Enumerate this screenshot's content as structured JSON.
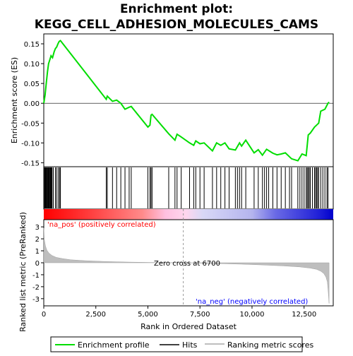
{
  "chart_data": {
    "type": "line",
    "title_line1": "Enrichment plot:",
    "title_line2": "KEGG_CELL_ADHESION_MOLECULES_CAMS",
    "xlabel": "Rank in Ordered Dataset",
    "ylabel_top": "Enrichment score (ES)",
    "ylabel_bottom": "Ranked list metric (PreRanked)",
    "xlim": [
      0,
      13900
    ],
    "x_ticks": [
      0,
      2500,
      5000,
      7500,
      10000,
      12500
    ],
    "x_tick_labels": [
      "0",
      "2,500",
      "5,000",
      "7,500",
      "10,000",
      "12,500"
    ],
    "es_ylim": [
      -0.16,
      0.175
    ],
    "es_y_ticks": [
      0.15,
      0.1,
      0.05,
      0.0,
      -0.05,
      -0.1,
      -0.15
    ],
    "es_y_tick_labels": [
      "0.15",
      "0.10",
      "0.05",
      "0.00",
      "-0.05",
      "-0.10",
      "-0.15"
    ],
    "metric_ylim": [
      -3.6,
      3.6
    ],
    "metric_y_ticks": [
      3,
      2,
      1,
      0,
      -1,
      -2,
      -3
    ],
    "metric_y_tick_labels": [
      "3",
      "2",
      "1",
      "0",
      "-1",
      "-2",
      "-3"
    ],
    "es_profile": {
      "x": [
        0,
        60,
        120,
        180,
        230,
        290,
        350,
        420,
        500,
        560,
        620,
        680,
        740,
        800,
        3000,
        3050,
        3300,
        3500,
        3700,
        3900,
        4100,
        4200,
        5000,
        5100,
        5150,
        5200,
        6000,
        6300,
        6400,
        6600,
        7000,
        7200,
        7300,
        7500,
        7700,
        8100,
        8300,
        8500,
        8700,
        8900,
        9200,
        9400,
        9500,
        9700,
        10100,
        10300,
        10500,
        10700,
        11000,
        11200,
        11400,
        11600,
        11900,
        12200,
        12400,
        12600,
        12700,
        12800,
        13000,
        13200,
        13300,
        13500,
        13650,
        13700
      ],
      "y": [
        0.0,
        0.02,
        0.05,
        0.08,
        0.1,
        0.11,
        0.12,
        0.115,
        0.13,
        0.138,
        0.142,
        0.15,
        0.156,
        0.158,
        0.01,
        0.018,
        0.005,
        0.008,
        0.0,
        -0.015,
        -0.01,
        -0.008,
        -0.06,
        -0.055,
        -0.03,
        -0.028,
        -0.077,
        -0.093,
        -0.078,
        -0.085,
        -0.1,
        -0.106,
        -0.095,
        -0.102,
        -0.1,
        -0.12,
        -0.1,
        -0.106,
        -0.1,
        -0.115,
        -0.118,
        -0.1,
        -0.108,
        -0.093,
        -0.125,
        -0.117,
        -0.131,
        -0.116,
        -0.126,
        -0.13,
        -0.128,
        -0.125,
        -0.14,
        -0.145,
        -0.128,
        -0.132,
        -0.08,
        -0.075,
        -0.06,
        -0.05,
        -0.02,
        -0.015,
        0.0,
        0.003
      ]
    },
    "hits": [
      10,
      40,
      70,
      100,
      130,
      160,
      190,
      220,
      250,
      280,
      310,
      340,
      370,
      400,
      460,
      560,
      620,
      700,
      760,
      800,
      3000,
      3050,
      3300,
      3500,
      3700,
      3900,
      4100,
      4200,
      5000,
      5100,
      5150,
      5200,
      6000,
      6300,
      6400,
      6600,
      7000,
      7200,
      7300,
      7500,
      7700,
      8100,
      8300,
      8500,
      8700,
      8900,
      9200,
      9300,
      9400,
      9500,
      9700,
      10100,
      10300,
      10500,
      10600,
      10700,
      10800,
      11000,
      11200,
      11400,
      11600,
      11800,
      11900,
      12200,
      12300,
      12400,
      12500,
      12600,
      12650,
      12700,
      12750,
      12800,
      12900,
      13000,
      13050,
      13100,
      13150,
      13200,
      13300,
      13400,
      13500,
      13600,
      13650
    ],
    "metric_profile": {
      "x": [
        0,
        30,
        80,
        150,
        250,
        400,
        600,
        900,
        1300,
        2000,
        3000,
        4000,
        5000,
        6000,
        6700,
        7500,
        8500,
        9500,
        10500,
        11500,
        12300,
        12800,
        13100,
        13300,
        13450,
        13550,
        13620,
        13660,
        13700
      ],
      "y": [
        2.9,
        1.9,
        1.4,
        1.05,
        0.8,
        0.6,
        0.45,
        0.35,
        0.25,
        0.17,
        0.1,
        0.06,
        0.03,
        0.01,
        0.0,
        -0.03,
        -0.07,
        -0.12,
        -0.18,
        -0.26,
        -0.35,
        -0.45,
        -0.55,
        -0.7,
        -0.9,
        -1.2,
        -1.6,
        -2.4,
        -3.4
      ]
    },
    "zero_cross_rank": 6700,
    "zero_cross_label": "Zero cross at 6700",
    "pos_label": "'na_pos' (positively correlated)",
    "neg_label": "'na_neg' (negatively correlated)",
    "legend": [
      "Enrichment profile",
      "Hits",
      "Ranking metric scores"
    ],
    "colors": {
      "es_line": "#00dd00",
      "hits": "#000000",
      "metric_fill": "#bebebe",
      "pos_text": "#ff0000",
      "neg_text": "#0000ff",
      "zero_line": "#999999"
    },
    "color_bar_stops": [
      "#ff0000",
      "#ff6a6a",
      "#ffb0d8",
      "#c8c8f0",
      "#5a5ae6",
      "#0000cc"
    ]
  }
}
